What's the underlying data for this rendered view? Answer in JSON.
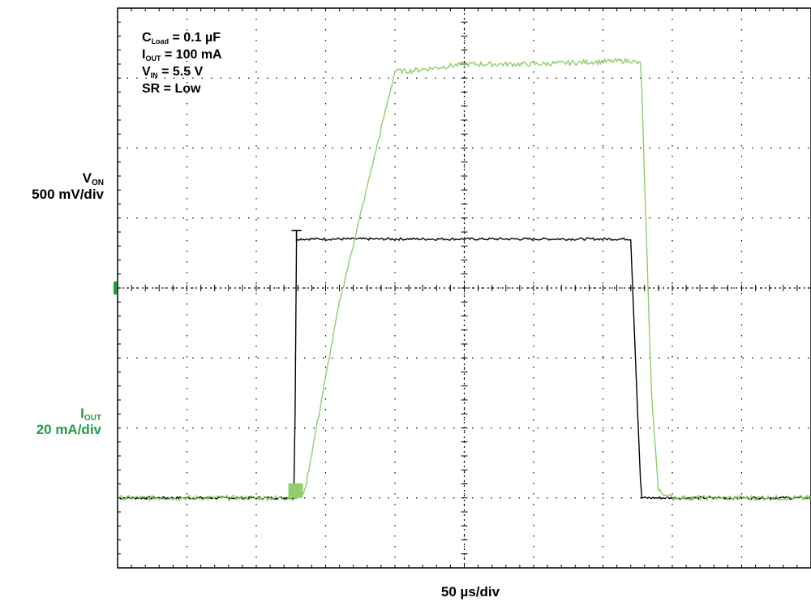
{
  "chart_data": {
    "type": "line",
    "title": "",
    "grid": true,
    "x_unit_label": "50 µs/div",
    "x_divisions": 10,
    "y_divisions": 8,
    "x": [
      0,
      1.5,
      2.55,
      2.58,
      2.7,
      3.2,
      4.0,
      4.2,
      5.0,
      6.0,
      7.4,
      7.55,
      7.6,
      7.7,
      7.8,
      8.0,
      9.0,
      10.0
    ],
    "series": [
      {
        "name": "V_ON",
        "trace_color": "#000000",
        "y_div": [
          1.0,
          1.0,
          1.0,
          4.7,
          4.7,
          4.7,
          4.7,
          4.7,
          4.7,
          4.7,
          4.7,
          1.0,
          1.0,
          1.0,
          1.0,
          1.0,
          1.0,
          1.0
        ]
      },
      {
        "name": "I_OUT",
        "trace_color": "#8fce6a",
        "y_div": [
          1.0,
          1.0,
          1.0,
          1.0,
          1.1,
          3.8,
          7.1,
          7.1,
          7.2,
          7.2,
          7.25,
          7.2,
          5.5,
          2.5,
          1.1,
          1.0,
          1.0,
          1.0
        ]
      }
    ],
    "ylim_div": [
      0,
      8
    ],
    "xlim_div": [
      0,
      10
    ]
  },
  "labels": {
    "von_name": "V",
    "von_sub": "ON",
    "von_scale": "500 mV/div",
    "iout_name": "I",
    "iout_sub": "OUT",
    "iout_scale": "20 mA/div",
    "xaxis": "50 µs/div"
  },
  "conditions": [
    {
      "main": "C",
      "sub": "Load",
      "rest": " = 0.1 µF"
    },
    {
      "main": "I",
      "sub": "OUT",
      "rest": " = 100 mA"
    },
    {
      "main": "V",
      "sub": "IN",
      "rest": " = 5.5 V"
    },
    {
      "main": "SR = Low",
      "sub": "",
      "rest": ""
    }
  ],
  "colors": {
    "von": "#000000",
    "iout": "#8fce6a",
    "label_green": "#1f9e45",
    "grid": "#000000"
  }
}
